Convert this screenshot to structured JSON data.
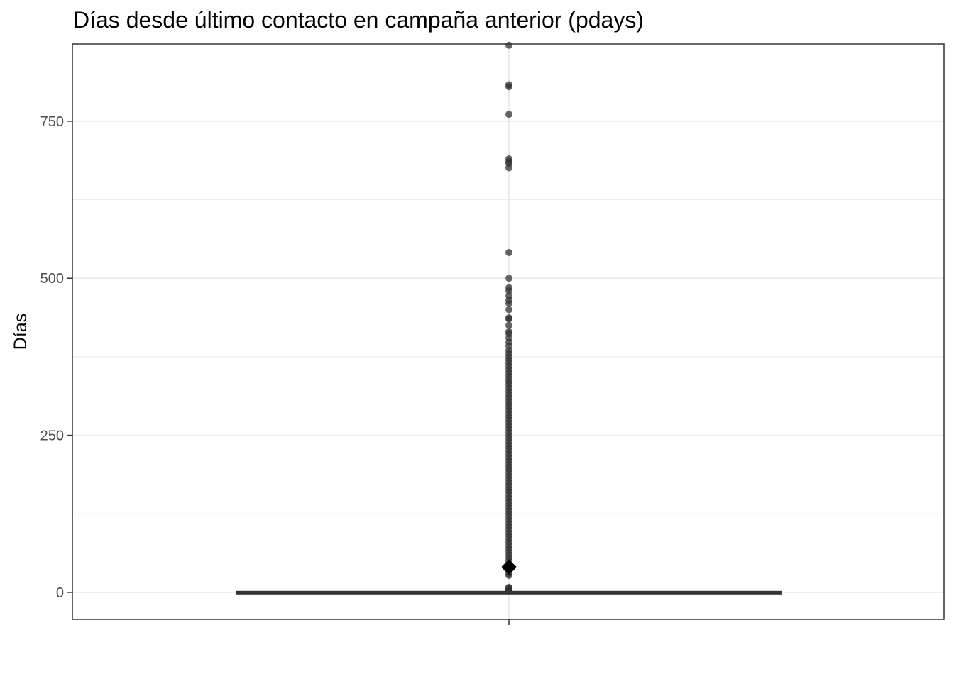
{
  "chart_data": {
    "type": "boxplot",
    "title": "Días desde último contacto en campaña anterior (pdays)",
    "xlabel": "",
    "ylabel": "Días",
    "ylim": [
      -43,
      873
    ],
    "y_ticks": [
      0,
      250,
      500,
      750
    ],
    "y_minor_ticks": [
      125,
      375,
      625
    ],
    "x_categories": [
      ""
    ],
    "grid": true,
    "legend": "none",
    "colors": {
      "points": "#333333",
      "box": "#333333",
      "mean_marker": "#000000",
      "grid": "#ebebeb",
      "panel_border": "#333333"
    },
    "box": {
      "q1": -1,
      "median": -1,
      "q3": -1,
      "whisker_low": -1,
      "whisker_high": -1
    },
    "mean": 40.2,
    "outliers": [
      871,
      808,
      805,
      761,
      690,
      686,
      683,
      676,
      541,
      500,
      485,
      480,
      472,
      465,
      460,
      450,
      437,
      435,
      425,
      415,
      412,
      405,
      398,
      392,
      385,
      380,
      375,
      370,
      365,
      360,
      355,
      350,
      345,
      340,
      335,
      330,
      325,
      320,
      315,
      310,
      305,
      300,
      295,
      290,
      285,
      280,
      275,
      270,
      265,
      260,
      255,
      250,
      245,
      240,
      235,
      230,
      225,
      220,
      215,
      210,
      205,
      200,
      195,
      190,
      185,
      180,
      175,
      170,
      165,
      160,
      155,
      150,
      145,
      140,
      135,
      130,
      125,
      120,
      115,
      110,
      105,
      100,
      95,
      90,
      85,
      80,
      75,
      70,
      65,
      60,
      55,
      50,
      45,
      40,
      35,
      30,
      27,
      8,
      7,
      5,
      4,
      3,
      2
    ]
  }
}
